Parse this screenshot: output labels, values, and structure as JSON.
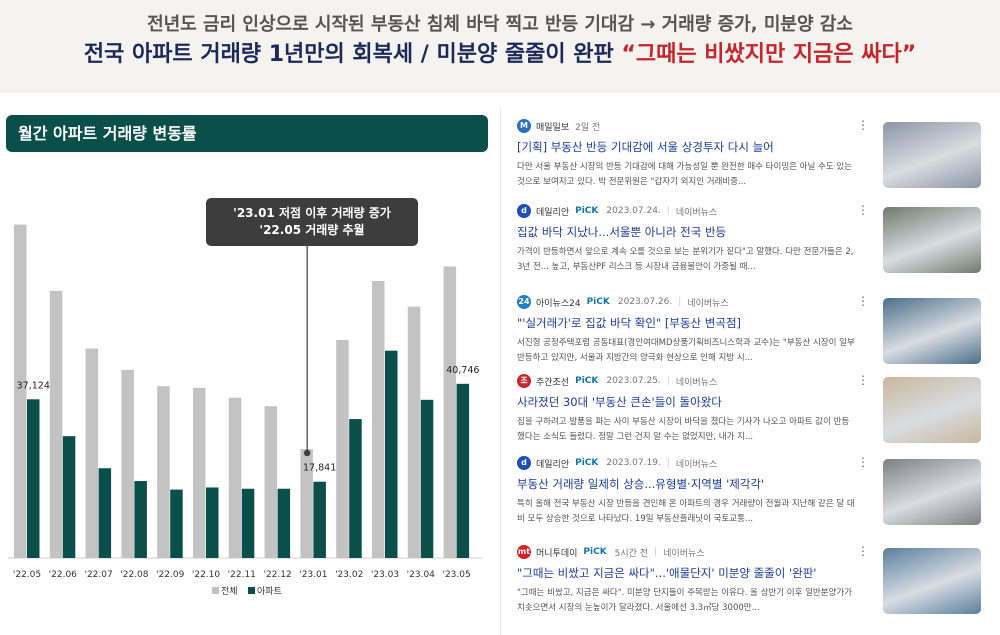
{
  "header": {
    "subtitle": "전년도 금리 인상으로 시작된 부동산 침체 바닥 찍고 반등 기대감 → 거래량 증가, 미분양 감소",
    "headline": "전국 아파트 거래량 1년만의 회복세 / 미분양 줄줄이 완판",
    "headline_quote": "“그때는 비쌌지만 지금은 싸다”"
  },
  "chart_title": "월간 아파트 거래량 변동률",
  "callout": {
    "line1": "'23.01 저점 이후 거래량 증가",
    "line2": "'22.05 거래량 추월"
  },
  "colors": {
    "total": "#c3c3c3",
    "apartment": "#0b4f4b",
    "title_bar": "#0b4f4b",
    "headline": "#1b2a5a",
    "quote": "#c8242b"
  },
  "chart_data": {
    "type": "bar",
    "categories": [
      "'22.05",
      "'22.06",
      "'22.07",
      "'22.08",
      "'22.09",
      "'22.10",
      "'22.11",
      "'22.12",
      "'23.01",
      "'23.02",
      "'23.03",
      "'23.04",
      "'23.05"
    ],
    "series": [
      {
        "name": "전체",
        "values": [
          78000,
          62500,
          49000,
          44000,
          40200,
          39800,
          37500,
          35500,
          25500,
          51000,
          64800,
          58800,
          68200
        ]
      },
      {
        "name": "아파트",
        "values": [
          37124,
          28500,
          21000,
          18000,
          16000,
          16500,
          16200,
          16200,
          17841,
          32500,
          48500,
          37000,
          40746
        ]
      }
    ],
    "data_labels": [
      {
        "series": "아파트",
        "category": "'22.05",
        "text": "37,124"
      },
      {
        "series": "아파트",
        "category": "'23.01",
        "text": "17,841"
      },
      {
        "series": "아파트",
        "category": "'23.05",
        "text": "40,746"
      }
    ],
    "ylim": [
      0,
      80000
    ],
    "legend": [
      "전체",
      "아파트"
    ],
    "legend_position": "bottom",
    "grid": false
  },
  "news": [
    {
      "press": "매일일보",
      "pick": "",
      "date": "2일 전",
      "portal": "",
      "logo_text": "M",
      "logo_color": "#2b6fc4",
      "title": "[기획] 부동산 반등 기대감에 서울 상경투자 다시 늘어",
      "desc": "다만 서울 부동산 시장의 반등 기대감에 대해 가능성일 뿐 완전한 매수 타이밍은 아닐 수도 있는 것으로 보여지고 있다. 박 전문위원은 \"갑자기 외지인 거래비중...",
      "thumb_color": "#8b96a6"
    },
    {
      "press": "데일리안",
      "pick": "PiCK",
      "date": "2023.07.24.",
      "portal": "네이버뉴스",
      "logo_text": "d",
      "logo_color": "#1d4fb8",
      "title": "집값 바닥 지났나...서울뿐 아니라 전국 반등",
      "desc": "가격이 반등하면서 앞으로 계속 오를 것으로 보는 분위기가 짙다\"고 말했다. 다만 전문가들은 2, 3년 전... 높고, 부동산PF 리스크 등 시장내 금융불안이 가중될 때...",
      "thumb_color": "#6f7a6e"
    },
    {
      "press": "아이뉴스24",
      "pick": "PiCK",
      "date": "2023.07.26.",
      "portal": "네이버뉴스",
      "logo_text": "24",
      "logo_color": "#1f7fc9",
      "title": "\"'실거래가'로 집값 바닥 확인\" [부동산 변곡점]",
      "desc": "서진형 공정주택포럼 공동대표(경인여대MD상품기획비즈니스학과 교수)는 \"부동산 시장이 일부 반등하고 있지만, 서울과 지방간의 양극화 현상으로 인해 지방 시...",
      "thumb_color": "#4a6f8a"
    },
    {
      "press": "주간조선",
      "pick": "PiCK",
      "date": "2023.07.25.",
      "portal": "네이버뉴스",
      "logo_text": "조",
      "logo_color": "#c8242b",
      "title": "사라졌던 30대 '부동산 큰손'들이 돌아왔다",
      "desc": "집을 구하려고 발품을 파는 사이 부동산 시장이 바닥을 쳤다는 기사가 나오고 아파트 값이 반등했다는 소식도 들렸다. 정말 그런 건지 알 수는 없었지만, 내가 지...",
      "thumb_color": "#c9b79c"
    },
    {
      "press": "데일리안",
      "pick": "PiCK",
      "date": "2023.07.19.",
      "portal": "네이버뉴스",
      "logo_text": "d",
      "logo_color": "#1d4fb8",
      "title": "부동산 거래량 일제히 상승...유형별·지역별 '제각각'",
      "desc": "특히 올해 전국 부동산 시장 반등을 견인해 온 아파트의 경우 거래량이 전월과 지난해 같은 달 대비 모두 상승한 것으로 나타났다. 19일 부동산플래닛이 국토교통...",
      "thumb_color": "#7d7f86"
    },
    {
      "press": "머니투데이",
      "pick": "PiCK",
      "date": "5시간 전",
      "portal": "네이버뉴스",
      "logo_text": "mt",
      "logo_color": "#d6202a",
      "title": "\"그때는 비쌌고 지금은 싸다\"...'애물단지' 미분양 줄줄이 '완판'",
      "desc": "\"그때는 비쌌고, 지금은 싸다\". 미분양 단지들이 주목받는 이유다. 올 상반기 이후 일반분양가가 치솟으면서 시장의 눈높이가 달라졌다. 서울에선 3.3㎡당 3000만...",
      "thumb_color": "#5a7f9e"
    }
  ]
}
